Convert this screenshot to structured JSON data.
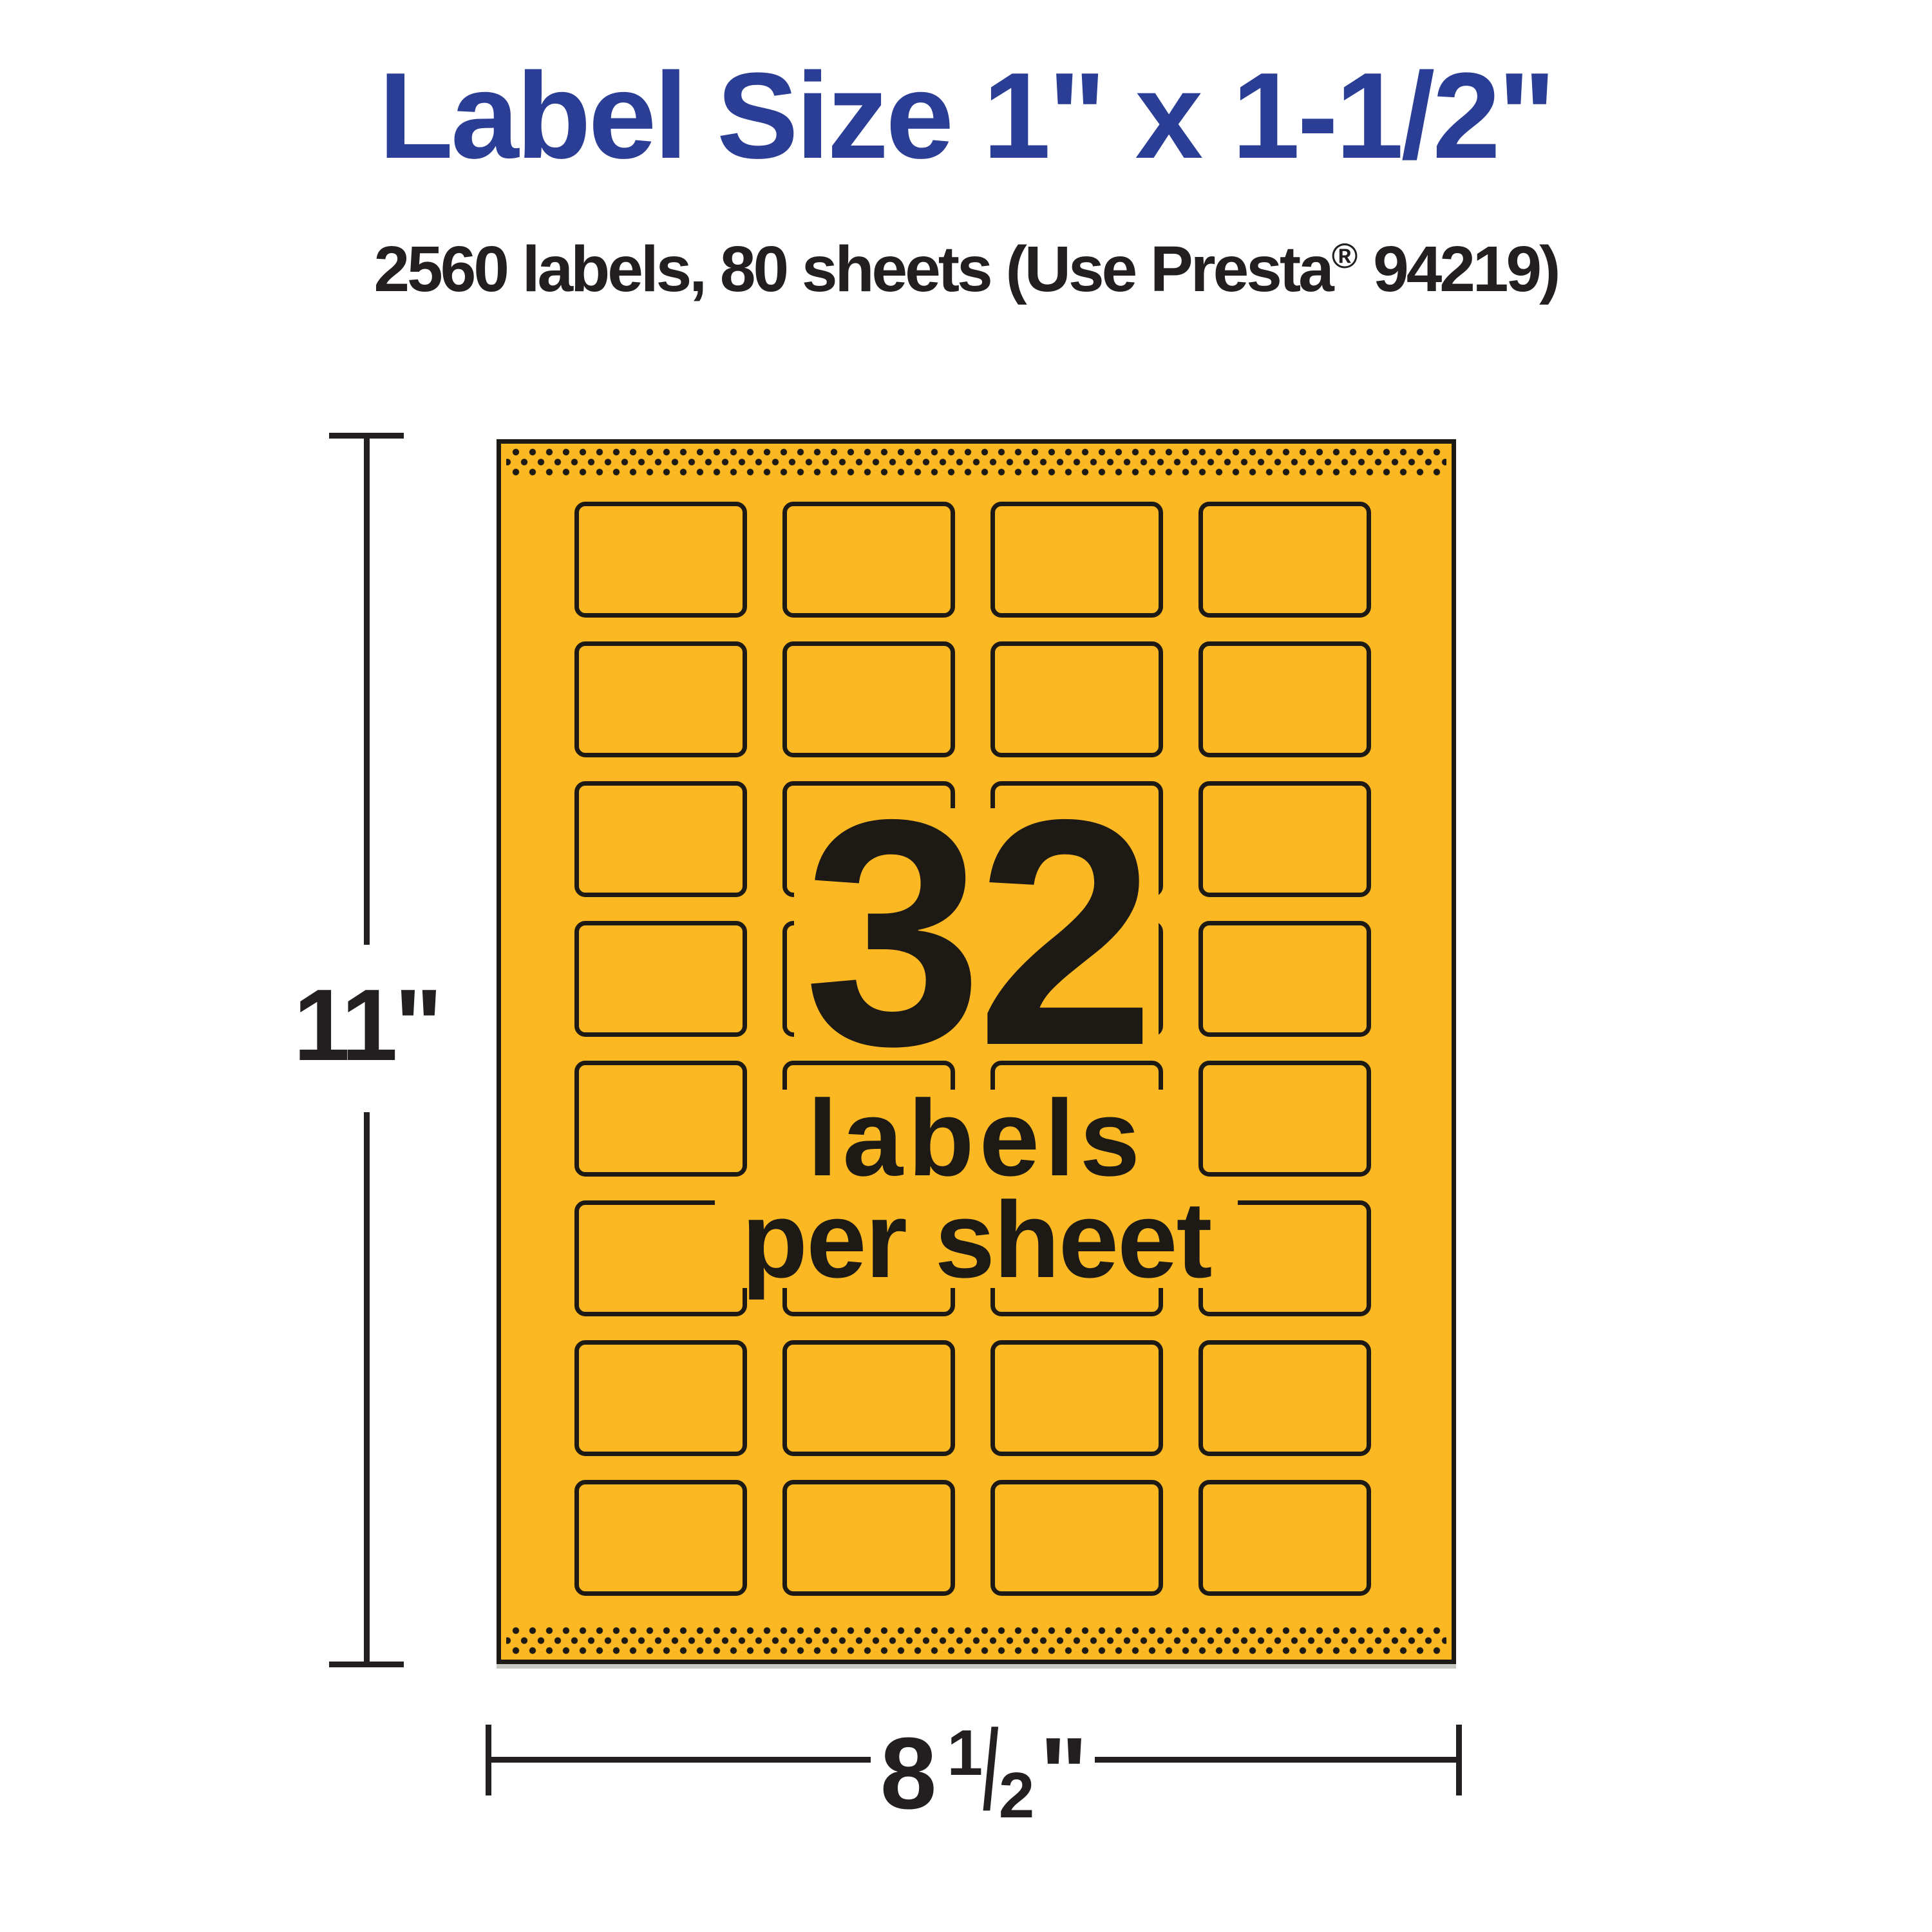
{
  "title": "Label Size 1\" x 1-1/2\"",
  "subtitle": {
    "prefix": "2560 labels, 80 sheets (Use Presta",
    "registered": "®",
    "suffix": " 94219)"
  },
  "sheet": {
    "grid": {
      "columns": 4,
      "rows": 8,
      "total_labels": 32
    },
    "center": {
      "number": "32",
      "line2": "labels",
      "line3": "per sheet"
    }
  },
  "dimensions": {
    "height_label": "11\"",
    "width_label": {
      "whole": "8",
      "numerator": "1",
      "denominator": "2",
      "unit": "\""
    }
  },
  "colors": {
    "accent_blue": "#2b3e96",
    "sheet_yellow": "#fcb822",
    "ink_dark": "#1d1a16",
    "text_dark": "#231f20",
    "background": "#ffffff"
  }
}
